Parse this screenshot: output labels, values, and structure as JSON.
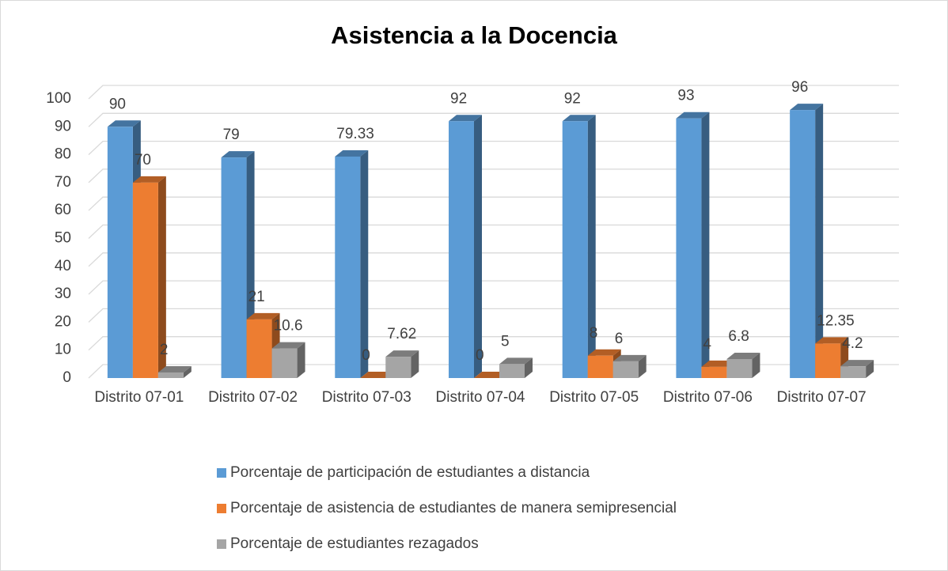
{
  "chart_data": {
    "type": "bar3d",
    "title": "Asistencia a la Docencia",
    "categories": [
      "Distrito 07-01",
      "Distrito 07-02",
      "Distrito 07-03",
      "Distrito 07-04",
      "Distrito 07-05",
      "Distrito 07-06",
      "Distrito 07-07"
    ],
    "series": [
      {
        "name": "Porcentaje de participación de estudiantes a distancia",
        "color": "#5b9bd5",
        "values": [
          90,
          79,
          79.33,
          92,
          92,
          93,
          96
        ]
      },
      {
        "name": "Porcentaje de asistencia de estudiantes de manera semipresencial",
        "color": "#ed7d31",
        "values": [
          70,
          21,
          0,
          0,
          8,
          4,
          12.35
        ]
      },
      {
        "name": "Porcentaje de estudiantes rezagados",
        "color": "#a5a5a5",
        "values": [
          2,
          10.6,
          7.62,
          5,
          6,
          6.8,
          4.2
        ]
      }
    ],
    "ylim": [
      0,
      100
    ],
    "yticks": [
      0,
      10,
      20,
      30,
      40,
      50,
      60,
      70,
      80,
      90,
      100
    ],
    "grid": true,
    "legend": "bottom"
  }
}
